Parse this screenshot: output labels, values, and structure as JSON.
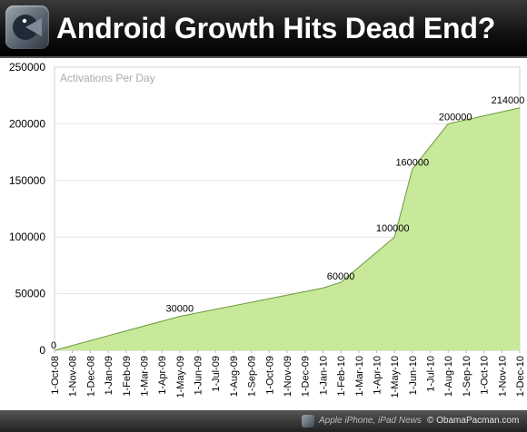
{
  "header": {
    "title": "Android Growth Hits Dead End?"
  },
  "footer": {
    "left": "Apple iPhone, iPad News",
    "right": "© ObamaPacman.com"
  },
  "chart_data": {
    "type": "area",
    "title": "Activations Per Day",
    "xlabel": "",
    "ylabel": "",
    "ylim": [
      0,
      250000
    ],
    "yticks": [
      0,
      50000,
      100000,
      150000,
      200000,
      250000
    ],
    "grid": true,
    "categories": [
      "1-Oct-08",
      "1-Nov-08",
      "1-Dec-08",
      "1-Jan-09",
      "1-Feb-09",
      "1-Mar-09",
      "1-Apr-09",
      "1-May-09",
      "1-Jun-09",
      "1-Jul-09",
      "1-Aug-09",
      "1-Sep-09",
      "1-Oct-09",
      "1-Nov-09",
      "1-Dec-09",
      "1-Jan-10",
      "1-Feb-10",
      "1-Mar-10",
      "1-Apr-10",
      "1-May-10",
      "1-Jun-10",
      "1-Jul-10",
      "1-Aug-10",
      "1-Sep-10",
      "1-Oct-10",
      "1-Nov-10",
      "1-Dec-10"
    ],
    "points": [
      {
        "x": "1-Oct-08",
        "y": 0,
        "label": "0"
      },
      {
        "x": "1-May-09",
        "y": 30000,
        "label": "30000"
      },
      {
        "x": "1-Jan-10",
        "y": 55000
      },
      {
        "x": "1-Feb-10",
        "y": 60000,
        "label": "60000"
      },
      {
        "x": "1-May-10",
        "y": 100000,
        "label": "100000"
      },
      {
        "x": "1-Jun-10",
        "y": 160000,
        "label": "160000"
      },
      {
        "x": "1-Aug-10",
        "y": 200000,
        "label": "200000"
      },
      {
        "x": "1-Dec-10",
        "y": 214000,
        "label": "214000"
      }
    ],
    "fill_color": "#c8e89a",
    "line_color": "#6a9a3a"
  }
}
